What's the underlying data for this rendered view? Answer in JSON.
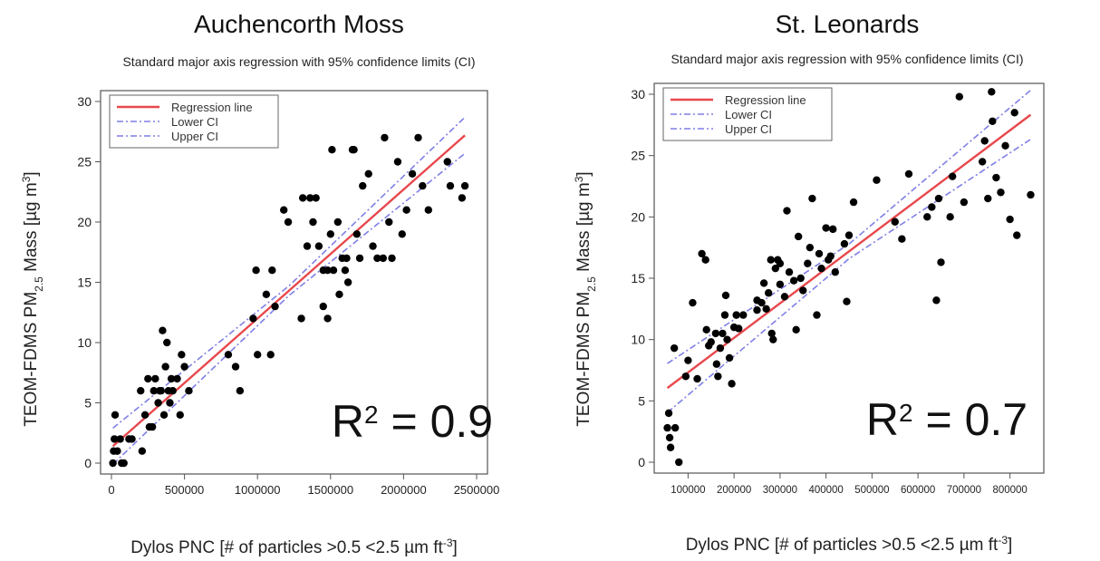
{
  "chart_data": [
    {
      "type": "scatter",
      "title": "Auchencorth Moss",
      "subtitle": "Standard major axis regression with 95% confidence limits (CI)",
      "xlabel": "Dylos PNC [# of particles >0.5 <2.5 µm ft",
      "xlabel_sup": "-3",
      "xlabel_end": "]",
      "ylabel": "TEOM-FDMS PM",
      "ylabel_sub": "2.5",
      "ylabel_end": "  Mass [µg m",
      "ylabel_sup": "3",
      "ylabel_close": "]",
      "xlim": [
        0,
        2500000
      ],
      "ylim": [
        0,
        30
      ],
      "xticks": [
        0,
        500000,
        1000000,
        1500000,
        2000000,
        2500000
      ],
      "xtick_labels": [
        "0",
        "500000",
        "1000000",
        "1500000",
        "2000000",
        "2500000"
      ],
      "yticks": [
        0,
        5,
        10,
        15,
        20,
        25,
        30
      ],
      "ytick_labels": [
        "0",
        "5",
        "10",
        "15",
        "20",
        "25",
        "30"
      ],
      "legend": {
        "placement": "top-left",
        "entries": [
          "Regression line",
          "Lower CI",
          "Upper CI"
        ]
      },
      "colors": {
        "regression": "#e8474c",
        "ci": "#7f7fe6",
        "points": "#000000"
      },
      "regression": {
        "intercept": 1.3,
        "slope": 1.07e-05
      },
      "ci_halfwidth": [
        0.4,
        1.5
      ],
      "annotation": {
        "prefix": "R",
        "sup": "2",
        "suffix": " = 0.9"
      },
      "points": [
        [
          10000,
          0
        ],
        [
          15000,
          1
        ],
        [
          20000,
          2
        ],
        [
          25000,
          4
        ],
        [
          40000,
          1
        ],
        [
          60000,
          2
        ],
        [
          70000,
          0
        ],
        [
          85000,
          0
        ],
        [
          120000,
          2
        ],
        [
          140000,
          2
        ],
        [
          200000,
          6
        ],
        [
          210000,
          1
        ],
        [
          230000,
          4
        ],
        [
          250000,
          7
        ],
        [
          260000,
          3
        ],
        [
          280000,
          3
        ],
        [
          290000,
          6
        ],
        [
          300000,
          7
        ],
        [
          320000,
          5
        ],
        [
          330000,
          6
        ],
        [
          340000,
          6
        ],
        [
          350000,
          11
        ],
        [
          360000,
          4
        ],
        [
          370000,
          8
        ],
        [
          380000,
          10
        ],
        [
          390000,
          6
        ],
        [
          400000,
          5
        ],
        [
          410000,
          7
        ],
        [
          420000,
          6
        ],
        [
          450000,
          7
        ],
        [
          470000,
          4
        ],
        [
          480000,
          9
        ],
        [
          500000,
          8
        ],
        [
          530000,
          6
        ],
        [
          800000,
          9
        ],
        [
          850000,
          8
        ],
        [
          880000,
          6
        ],
        [
          970000,
          12
        ],
        [
          990000,
          16
        ],
        [
          1000000,
          9
        ],
        [
          1060000,
          14
        ],
        [
          1090000,
          9
        ],
        [
          1100000,
          16
        ],
        [
          1120000,
          13
        ],
        [
          1180000,
          21
        ],
        [
          1210000,
          20
        ],
        [
          1300000,
          12
        ],
        [
          1310000,
          22
        ],
        [
          1340000,
          18
        ],
        [
          1360000,
          22
        ],
        [
          1380000,
          20
        ],
        [
          1400000,
          22
        ],
        [
          1420000,
          18
        ],
        [
          1450000,
          13
        ],
        [
          1480000,
          12
        ],
        [
          1500000,
          19
        ],
        [
          1510000,
          26
        ],
        [
          1520000,
          16
        ],
        [
          1550000,
          20
        ],
        [
          1560000,
          14
        ],
        [
          1580000,
          17
        ],
        [
          1600000,
          16
        ],
        [
          1620000,
          15
        ],
        [
          1650000,
          26
        ],
        [
          1680000,
          19
        ],
        [
          1700000,
          17
        ],
        [
          1720000,
          23
        ],
        [
          1760000,
          24
        ],
        [
          1790000,
          18
        ],
        [
          1820000,
          17
        ],
        [
          1870000,
          27
        ],
        [
          1900000,
          20
        ],
        [
          1920000,
          17
        ],
        [
          1960000,
          25
        ],
        [
          1990000,
          19
        ],
        [
          2020000,
          21
        ],
        [
          2060000,
          24
        ],
        [
          2100000,
          27
        ],
        [
          2130000,
          23
        ],
        [
          2170000,
          21
        ],
        [
          2300000,
          25
        ],
        [
          2320000,
          23
        ],
        [
          2400000,
          22
        ],
        [
          2420000,
          23
        ],
        [
          1860000,
          17
        ],
        [
          1660000,
          26
        ],
        [
          1610000,
          17
        ],
        [
          1450000,
          16
        ],
        [
          1480000,
          16
        ]
      ]
    },
    {
      "type": "scatter",
      "title": "St. Leonards",
      "subtitle": "Standard major axis regression with 95% confidence limits (CI)",
      "xlabel": "Dylos PNC [# of particles >0.5 <2.5 µm ft",
      "xlabel_sup": "-3",
      "xlabel_end": "]",
      "ylabel": "TEOM-FDMS PM",
      "ylabel_sub": "2.5",
      "ylabel_end": "  Mass [µg m",
      "ylabel_sup": "3",
      "ylabel_close": "]",
      "xlim": [
        50000,
        850000
      ],
      "ylim": [
        0,
        30
      ],
      "xticks": [
        100000,
        200000,
        300000,
        400000,
        500000,
        600000,
        700000,
        800000
      ],
      "xtick_labels": [
        "100000",
        "200000",
        "300000",
        "400000",
        "500000",
        "600000",
        "700000",
        "800000"
      ],
      "yticks": [
        0,
        5,
        10,
        15,
        20,
        25,
        30
      ],
      "ytick_labels": [
        "0",
        "5",
        "10",
        "15",
        "20",
        "25",
        "30"
      ],
      "legend": {
        "placement": "top-left",
        "entries": [
          "Regression line",
          "Lower CI",
          "Upper CI"
        ]
      },
      "colors": {
        "regression": "#e8474c",
        "ci": "#7f7fe6",
        "points": "#000000"
      },
      "regression": {
        "intercept": 4.5,
        "slope": 2.82e-05
      },
      "ci_halfwidth": [
        0.6,
        2.0
      ],
      "annotation": {
        "prefix": "R",
        "sup": "2",
        "suffix": " = 0.7"
      },
      "points": [
        [
          55000,
          2.8
        ],
        [
          58000,
          4
        ],
        [
          60000,
          2
        ],
        [
          62000,
          1.2
        ],
        [
          70000,
          9.3
        ],
        [
          72000,
          2.8
        ],
        [
          80000,
          0
        ],
        [
          95000,
          7
        ],
        [
          100000,
          8.3
        ],
        [
          110000,
          13
        ],
        [
          120000,
          6.8
        ],
        [
          130000,
          17
        ],
        [
          138000,
          16.5
        ],
        [
          140000,
          10.8
        ],
        [
          145000,
          9.5
        ],
        [
          150000,
          9.8
        ],
        [
          160000,
          10.5
        ],
        [
          162000,
          8
        ],
        [
          165000,
          7
        ],
        [
          170000,
          9.3
        ],
        [
          175000,
          10.5
        ],
        [
          180000,
          12
        ],
        [
          182000,
          13.6
        ],
        [
          185000,
          10
        ],
        [
          190000,
          8.5
        ],
        [
          195000,
          6.4
        ],
        [
          200000,
          11
        ],
        [
          205000,
          12
        ],
        [
          210000,
          10.9
        ],
        [
          220000,
          12
        ],
        [
          250000,
          12.4
        ],
        [
          260000,
          13
        ],
        [
          265000,
          14.6
        ],
        [
          270000,
          12.5
        ],
        [
          275000,
          13.8
        ],
        [
          280000,
          16.5
        ],
        [
          282000,
          10.5
        ],
        [
          285000,
          10
        ],
        [
          290000,
          15.8
        ],
        [
          295000,
          16.5
        ],
        [
          300000,
          14.5
        ],
        [
          310000,
          13.5
        ],
        [
          315000,
          20.5
        ],
        [
          320000,
          15.5
        ],
        [
          330000,
          14.8
        ],
        [
          335000,
          10.8
        ],
        [
          340000,
          18.4
        ],
        [
          345000,
          15
        ],
        [
          350000,
          14
        ],
        [
          360000,
          16.2
        ],
        [
          365000,
          17.5
        ],
        [
          370000,
          21.5
        ],
        [
          380000,
          12
        ],
        [
          385000,
          17
        ],
        [
          390000,
          15.8
        ],
        [
          400000,
          19.1
        ],
        [
          405000,
          16.5
        ],
        [
          410000,
          16.8
        ],
        [
          415000,
          19
        ],
        [
          420000,
          15.5
        ],
        [
          440000,
          17.8
        ],
        [
          445000,
          13.1
        ],
        [
          450000,
          18.5
        ],
        [
          460000,
          21.2
        ],
        [
          510000,
          23
        ],
        [
          550000,
          19.6
        ],
        [
          565000,
          18.2
        ],
        [
          580000,
          23.5
        ],
        [
          620000,
          20
        ],
        [
          630000,
          20.8
        ],
        [
          640000,
          13.2
        ],
        [
          645000,
          21.5
        ],
        [
          650000,
          16.3
        ],
        [
          670000,
          20
        ],
        [
          675000,
          23.3
        ],
        [
          690000,
          29.8
        ],
        [
          700000,
          21.2
        ],
        [
          740000,
          24.5
        ],
        [
          745000,
          26.2
        ],
        [
          752000,
          21.5
        ],
        [
          760000,
          30.2
        ],
        [
          762000,
          27.8
        ],
        [
          770000,
          23.2
        ],
        [
          780000,
          22
        ],
        [
          790000,
          25.8
        ],
        [
          800000,
          19.8
        ],
        [
          810000,
          28.5
        ],
        [
          815000,
          18.5
        ],
        [
          845000,
          21.8
        ],
        [
          300000,
          16.2
        ],
        [
          250000,
          13.2
        ]
      ]
    }
  ]
}
